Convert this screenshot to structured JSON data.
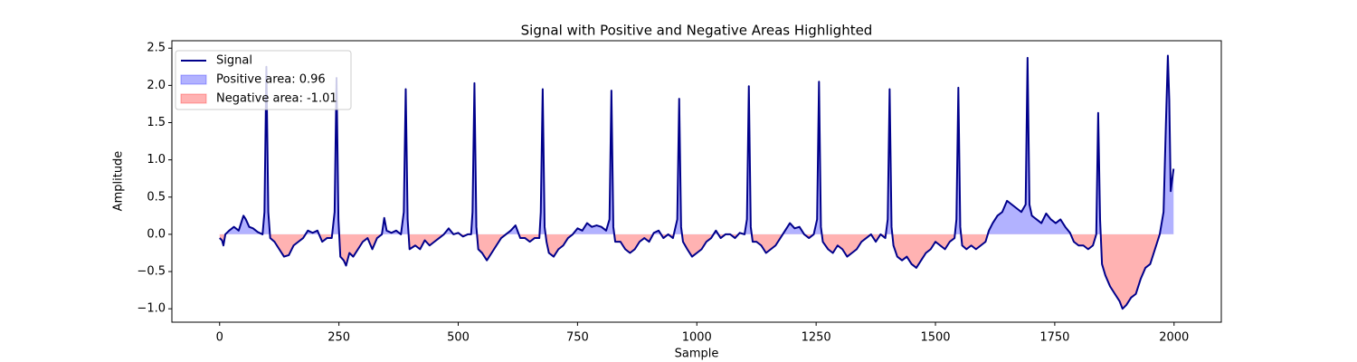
{
  "chart_data": {
    "type": "line",
    "title": "Signal with Positive and Negative Areas Highlighted",
    "xlabel": "Sample",
    "ylabel": "Amplitude",
    "xlim": [
      -100,
      2099
    ],
    "ylim": [
      -1.18,
      2.6
    ],
    "xticks": [
      0,
      250,
      500,
      750,
      1000,
      1250,
      1500,
      1750,
      2000
    ],
    "yticks": [
      {
        "value": -1,
        "label": "−1.0"
      },
      {
        "value": -0.5,
        "label": "−0.5"
      },
      {
        "value": 0,
        "label": "0.0"
      },
      0.5,
      {
        "value": 1,
        "label": "1.0"
      },
      1.5,
      {
        "value": 2,
        "label": "2.0"
      },
      2.5
    ],
    "legend": "upper left",
    "series": [
      {
        "name": "Signal",
        "color": "#00008b",
        "x": [
          0,
          5,
          8,
          12,
          20,
          30,
          40,
          50,
          55,
          62,
          70,
          80,
          90,
          94,
          98,
          102,
          106,
          115,
          125,
          135,
          145,
          155,
          165,
          175,
          185,
          195,
          205,
          215,
          225,
          235,
          241,
          245,
          249,
          253,
          260,
          265,
          272,
          280,
          290,
          300,
          310,
          320,
          330,
          340,
          345,
          350,
          360,
          370,
          380,
          386,
          390,
          394,
          398,
          410,
          420,
          430,
          440,
          450,
          460,
          470,
          480,
          490,
          500,
          510,
          520,
          527,
          530,
          534,
          538,
          542,
          550,
          560,
          570,
          580,
          590,
          600,
          610,
          620,
          630,
          640,
          650,
          660,
          670,
          673,
          677,
          681,
          685,
          690,
          700,
          710,
          720,
          730,
          740,
          750,
          760,
          770,
          780,
          790,
          800,
          810,
          817,
          821,
          825,
          829,
          840,
          850,
          860,
          870,
          880,
          890,
          900,
          910,
          920,
          930,
          940,
          950,
          959,
          963,
          967,
          971,
          980,
          990,
          1000,
          1010,
          1020,
          1030,
          1040,
          1050,
          1060,
          1070,
          1080,
          1090,
          1100,
          1105,
          1109,
          1113,
          1117,
          1125,
          1135,
          1145,
          1155,
          1165,
          1175,
          1185,
          1195,
          1205,
          1215,
          1225,
          1235,
          1245,
          1252,
          1256,
          1260,
          1264,
          1275,
          1285,
          1295,
          1305,
          1315,
          1325,
          1335,
          1345,
          1355,
          1365,
          1375,
          1385,
          1395,
          1400,
          1404,
          1408,
          1412,
          1420,
          1430,
          1440,
          1450,
          1460,
          1470,
          1480,
          1490,
          1500,
          1510,
          1520,
          1530,
          1540,
          1544,
          1548,
          1552,
          1556,
          1565,
          1575,
          1585,
          1595,
          1605,
          1612,
          1620,
          1630,
          1640,
          1650,
          1660,
          1670,
          1680,
          1689,
          1693,
          1697,
          1702,
          1712,
          1722,
          1732,
          1742,
          1752,
          1762,
          1772,
          1782,
          1790,
          1800,
          1810,
          1820,
          1830,
          1837,
          1841,
          1845,
          1849,
          1856,
          1866,
          1876,
          1886,
          1892,
          1900,
          1910,
          1920,
          1930,
          1940,
          1950,
          1960,
          1970,
          1978,
          1983,
          1987,
          1990,
          1993,
          1999
        ],
        "values": [
          -0.05,
          -0.08,
          -0.15,
          0.0,
          0.05,
          0.1,
          0.05,
          0.25,
          0.2,
          0.1,
          0.08,
          0.03,
          0.0,
          0.3,
          2.25,
          0.3,
          -0.05,
          -0.1,
          -0.2,
          -0.3,
          -0.28,
          -0.15,
          -0.1,
          -0.05,
          0.05,
          0.02,
          0.05,
          -0.1,
          -0.05,
          -0.05,
          0.3,
          2.1,
          0.2,
          -0.3,
          -0.35,
          -0.42,
          -0.25,
          -0.3,
          -0.2,
          -0.1,
          -0.05,
          -0.2,
          -0.05,
          0.0,
          0.22,
          0.05,
          0.02,
          0.05,
          0.0,
          0.3,
          1.95,
          0.2,
          -0.2,
          -0.15,
          -0.2,
          -0.08,
          -0.15,
          -0.1,
          -0.05,
          0.0,
          0.08,
          0.0,
          0.02,
          -0.03,
          0.0,
          0.0,
          0.3,
          2.03,
          0.1,
          -0.2,
          -0.25,
          -0.35,
          -0.25,
          -0.15,
          -0.05,
          0.0,
          0.05,
          0.12,
          -0.05,
          -0.05,
          -0.1,
          -0.05,
          -0.05,
          0.3,
          1.95,
          0.1,
          -0.1,
          -0.25,
          -0.3,
          -0.2,
          -0.15,
          -0.05,
          0.0,
          0.08,
          0.05,
          0.15,
          0.1,
          0.12,
          0.1,
          0.05,
          0.2,
          1.93,
          0.1,
          -0.1,
          -0.1,
          -0.2,
          -0.25,
          -0.2,
          -0.1,
          -0.05,
          -0.1,
          0.02,
          0.05,
          -0.05,
          0.0,
          -0.05,
          0.2,
          1.82,
          0.1,
          -0.1,
          -0.2,
          -0.3,
          -0.25,
          -0.2,
          -0.1,
          -0.05,
          0.05,
          -0.05,
          0.0,
          0.0,
          -0.05,
          0.02,
          0.0,
          0.2,
          1.99,
          0.1,
          -0.1,
          -0.1,
          -0.15,
          -0.25,
          -0.2,
          -0.15,
          -0.05,
          0.05,
          0.15,
          0.08,
          0.1,
          0.0,
          -0.05,
          0.0,
          0.2,
          2.05,
          0.1,
          -0.1,
          -0.2,
          -0.25,
          -0.15,
          -0.2,
          -0.3,
          -0.25,
          -0.2,
          -0.1,
          -0.05,
          0.0,
          -0.1,
          0.0,
          -0.05,
          0.2,
          1.95,
          0.1,
          -0.15,
          -0.3,
          -0.35,
          -0.3,
          -0.4,
          -0.45,
          -0.35,
          -0.25,
          -0.2,
          -0.1,
          -0.15,
          -0.2,
          -0.1,
          -0.05,
          0.2,
          1.97,
          0.1,
          -0.15,
          -0.2,
          -0.15,
          -0.2,
          -0.15,
          -0.1,
          0.05,
          0.15,
          0.25,
          0.3,
          0.45,
          0.4,
          0.35,
          0.3,
          0.4,
          2.37,
          0.4,
          0.25,
          0.2,
          0.15,
          0.28,
          0.2,
          0.15,
          0.2,
          0.1,
          0.02,
          -0.1,
          -0.15,
          -0.15,
          -0.2,
          -0.15,
          0.0,
          1.63,
          0.2,
          -0.4,
          -0.55,
          -0.7,
          -0.8,
          -0.9,
          -1.0,
          -0.95,
          -0.85,
          -0.8,
          -0.6,
          -0.45,
          -0.4,
          -0.2,
          0.0,
          0.3,
          1.5,
          2.4,
          1.8,
          0.58,
          0.88
        ]
      }
    ],
    "areas": [
      {
        "name": "Positive area: 0.96",
        "color": "#0000ff",
        "side": "positive"
      },
      {
        "name": "Negative area: -1.01",
        "color": "#ff0000",
        "side": "negative"
      }
    ]
  }
}
